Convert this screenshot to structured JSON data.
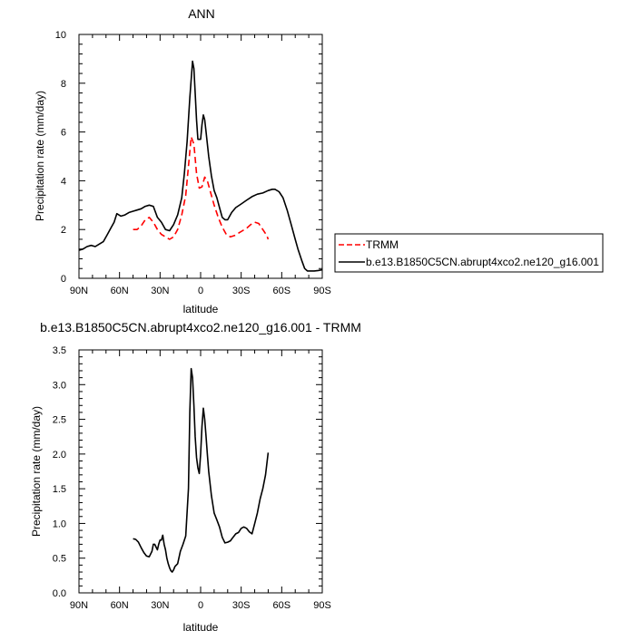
{
  "chart_data": [
    {
      "type": "line",
      "title": "ANN",
      "xlabel": "latitude",
      "ylabel": "Precipitation rate (mm/day)",
      "xlim": [
        90,
        -90
      ],
      "ylim": [
        0,
        10
      ],
      "x_ticks": [
        90,
        60,
        30,
        0,
        -30,
        -60,
        -90
      ],
      "x_tick_labels": [
        "90N",
        "60N",
        "30N",
        "0",
        "30S",
        "60S",
        "90S"
      ],
      "y_ticks": [
        0,
        2,
        4,
        6,
        8,
        10
      ],
      "y_tick_labels": [
        "0",
        "2",
        "4",
        "6",
        "8",
        "10"
      ],
      "grid": false,
      "legend_position": "right",
      "series": [
        {
          "name": "TRMM",
          "color": "#ff0000",
          "style": "dashed",
          "x": [
            50,
            47,
            44,
            41,
            38,
            35,
            32,
            29,
            26,
            23,
            20,
            17,
            14,
            11,
            9,
            7,
            5,
            3,
            1,
            -1,
            -3,
            -5,
            -7,
            -10,
            -13,
            -16,
            -19,
            -22,
            -25,
            -28,
            -31,
            -34,
            -37,
            -40,
            -43,
            -46,
            -49,
            -50
          ],
          "y": [
            2.0,
            2.0,
            2.15,
            2.4,
            2.5,
            2.3,
            2.0,
            1.8,
            1.7,
            1.6,
            1.7,
            2.0,
            2.6,
            3.4,
            4.6,
            5.8,
            5.5,
            4.3,
            3.7,
            3.75,
            4.15,
            4.0,
            3.6,
            3.0,
            2.5,
            2.1,
            1.8,
            1.7,
            1.75,
            1.85,
            1.95,
            2.05,
            2.2,
            2.3,
            2.25,
            2.0,
            1.75,
            1.6
          ]
        },
        {
          "name": "b.e13.B1850C5CN.abrupt4xco2.ne120_g16.001",
          "color": "#000000",
          "style": "solid",
          "x": [
            90,
            87,
            84,
            81,
            78,
            75,
            72,
            69,
            66,
            64,
            62,
            59,
            56,
            53,
            50,
            47,
            44,
            41,
            38,
            35,
            32,
            29,
            26,
            23,
            20,
            17,
            14,
            12,
            10,
            8,
            6,
            5,
            4,
            3,
            2,
            0,
            -1,
            -2,
            -3,
            -4,
            -6,
            -8,
            -10,
            -12,
            -14,
            -16,
            -18,
            -20,
            -23,
            -26,
            -30,
            -34,
            -38,
            -42,
            -46,
            -50,
            -53,
            -55,
            -58,
            -61,
            -64,
            -67,
            -70,
            -72,
            -75,
            -77,
            -79,
            -81,
            -84,
            -87,
            -90
          ],
          "y": [
            1.15,
            1.2,
            1.3,
            1.35,
            1.3,
            1.4,
            1.5,
            1.8,
            2.1,
            2.3,
            2.65,
            2.55,
            2.6,
            2.7,
            2.75,
            2.8,
            2.85,
            2.95,
            3.0,
            2.95,
            2.5,
            2.3,
            2.0,
            1.95,
            2.2,
            2.6,
            3.3,
            4.3,
            5.6,
            7.4,
            8.9,
            8.6,
            7.6,
            6.5,
            5.7,
            5.7,
            6.3,
            6.7,
            6.5,
            6.0,
            5.0,
            4.2,
            3.6,
            3.3,
            2.9,
            2.5,
            2.4,
            2.4,
            2.7,
            2.9,
            3.05,
            3.2,
            3.35,
            3.45,
            3.5,
            3.6,
            3.65,
            3.65,
            3.55,
            3.3,
            2.8,
            2.2,
            1.6,
            1.2,
            0.7,
            0.4,
            0.3,
            0.3,
            0.3,
            0.32,
            0.35
          ]
        }
      ]
    },
    {
      "type": "line",
      "title": "b.e13.B1850C5CN.abrupt4xco2.ne120_g16.001 - TRMM",
      "xlabel": "latitude",
      "ylabel": "Precipitation rate (mm/day)",
      "xlim": [
        90,
        -90
      ],
      "ylim": [
        0,
        3.5
      ],
      "x_ticks": [
        90,
        60,
        30,
        0,
        -30,
        -60,
        -90
      ],
      "x_tick_labels": [
        "90N",
        "60N",
        "30N",
        "0",
        "30S",
        "60S",
        "90S"
      ],
      "y_ticks": [
        0,
        0.5,
        1.0,
        1.5,
        2.0,
        2.5,
        3.0,
        3.5
      ],
      "y_tick_labels": [
        "0.0",
        "0.5",
        "1.0",
        "1.5",
        "2.0",
        "2.5",
        "3.0",
        "3.5"
      ],
      "grid": false,
      "series": [
        {
          "color": "#000000",
          "style": "solid",
          "x": [
            50,
            48,
            46,
            44,
            42,
            40,
            38,
            36,
            35,
            34,
            33,
            32,
            31,
            30,
            29,
            28,
            27,
            26,
            25,
            24,
            23,
            22,
            21,
            20,
            19,
            17,
            15,
            13,
            11,
            9,
            8,
            7,
            6,
            5,
            4,
            3,
            2,
            1,
            0,
            -1,
            -2,
            -3,
            -4,
            -5,
            -6,
            -8,
            -10,
            -12,
            -14,
            -16,
            -18,
            -20,
            -22,
            -24,
            -26,
            -28,
            -30,
            -32,
            -34,
            -36,
            -38,
            -40,
            -42,
            -44,
            -46,
            -48,
            -50
          ],
          "y": [
            0.78,
            0.77,
            0.73,
            0.65,
            0.58,
            0.53,
            0.52,
            0.6,
            0.7,
            0.7,
            0.66,
            0.62,
            0.7,
            0.76,
            0.76,
            0.83,
            0.7,
            0.62,
            0.5,
            0.42,
            0.36,
            0.32,
            0.3,
            0.33,
            0.38,
            0.42,
            0.6,
            0.7,
            0.82,
            1.5,
            2.6,
            3.23,
            3.1,
            2.7,
            2.25,
            1.95,
            1.8,
            1.72,
            2.0,
            2.4,
            2.66,
            2.5,
            2.25,
            2.0,
            1.75,
            1.4,
            1.15,
            1.05,
            0.95,
            0.8,
            0.72,
            0.73,
            0.75,
            0.8,
            0.85,
            0.87,
            0.93,
            0.95,
            0.93,
            0.88,
            0.85,
            1.0,
            1.15,
            1.35,
            1.5,
            1.7,
            2.02
          ]
        }
      ]
    }
  ]
}
